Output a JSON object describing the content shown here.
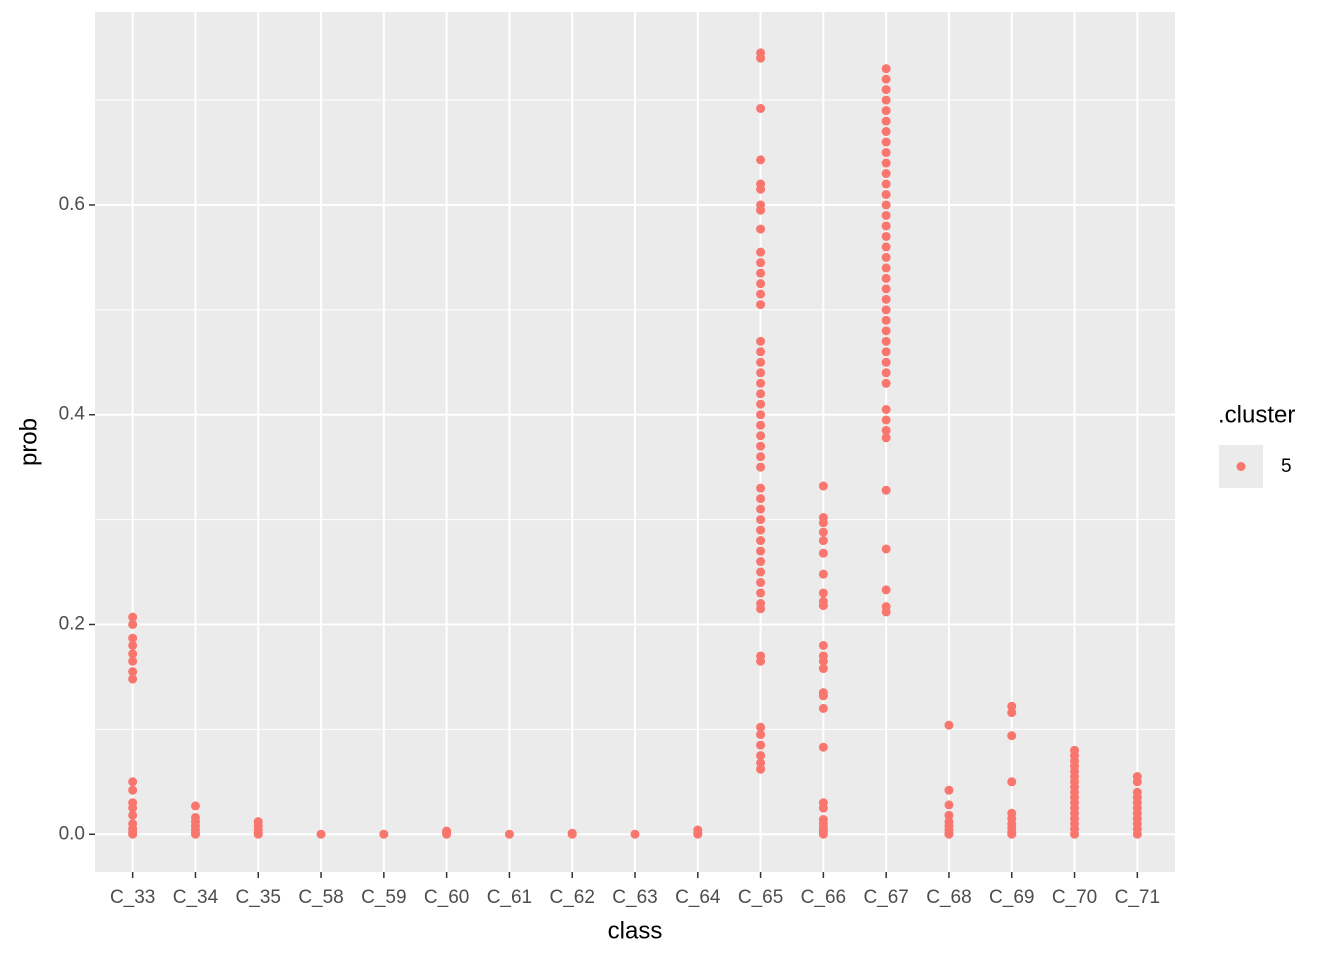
{
  "chart_data": {
    "type": "strip",
    "x_label": "class",
    "y_label": "prob",
    "legend_title": ".cluster",
    "legend": "right",
    "grid": true,
    "categories": [
      "C_33",
      "C_34",
      "C_35",
      "C_58",
      "C_59",
      "C_60",
      "C_61",
      "C_62",
      "C_63",
      "C_64",
      "C_65",
      "C_66",
      "C_67",
      "C_68",
      "C_69",
      "C_70",
      "C_71"
    ],
    "series": [
      {
        "name": "5",
        "color": "#f8766d",
        "values": [
          [
            0.207,
            0.2,
            0.187,
            0.18,
            0.172,
            0.165,
            0.155,
            0.148,
            0.05,
            0.042,
            0.03,
            0.025,
            0.018,
            0.01,
            0.005,
            0.002,
            0
          ],
          [
            0.027,
            0.016,
            0.012,
            0.008,
            0.004,
            0.001,
            0
          ],
          [
            0.012,
            0.008,
            0.004,
            0.001,
            0
          ],
          [
            0
          ],
          [
            0
          ],
          [
            0.003,
            0.001,
            0
          ],
          [
            0
          ],
          [
            0.001,
            0
          ],
          [
            0
          ],
          [
            0.004,
            0.001,
            0
          ],
          [
            0.745,
            0.74,
            0.692,
            0.643,
            0.62,
            0.615,
            0.6,
            0.595,
            0.577,
            0.555,
            0.545,
            0.535,
            0.525,
            0.515,
            0.505,
            0.47,
            0.46,
            0.45,
            0.44,
            0.43,
            0.42,
            0.41,
            0.4,
            0.39,
            0.38,
            0.37,
            0.36,
            0.35,
            0.33,
            0.32,
            0.31,
            0.3,
            0.29,
            0.28,
            0.27,
            0.26,
            0.25,
            0.24,
            0.23,
            0.22,
            0.215,
            0.17,
            0.165,
            0.102,
            0.095,
            0.085,
            0.075,
            0.068,
            0.062
          ],
          [
            0.332,
            0.302,
            0.297,
            0.288,
            0.28,
            0.268,
            0.248,
            0.23,
            0.222,
            0.218,
            0.18,
            0.17,
            0.165,
            0.158,
            0.135,
            0.132,
            0.12,
            0.083,
            0.03,
            0.025,
            0.014,
            0.01,
            0.006,
            0.003,
            0
          ],
          [
            0.73,
            0.72,
            0.71,
            0.7,
            0.69,
            0.68,
            0.67,
            0.66,
            0.65,
            0.64,
            0.63,
            0.62,
            0.61,
            0.6,
            0.59,
            0.58,
            0.57,
            0.56,
            0.55,
            0.54,
            0.53,
            0.52,
            0.51,
            0.5,
            0.49,
            0.48,
            0.47,
            0.46,
            0.45,
            0.44,
            0.43,
            0.405,
            0.395,
            0.385,
            0.378,
            0.328,
            0.272,
            0.233,
            0.217,
            0.212
          ],
          [
            0.104,
            0.042,
            0.028,
            0.018,
            0.012,
            0.008,
            0.004,
            0.001,
            0
          ],
          [
            0.122,
            0.116,
            0.094,
            0.05,
            0.02,
            0.015,
            0.01,
            0.006,
            0.002,
            0
          ],
          [
            0.08,
            0.075,
            0.07,
            0.065,
            0.06,
            0.055,
            0.05,
            0.045,
            0.04,
            0.035,
            0.03,
            0.025,
            0.02,
            0.015,
            0.01,
            0.005,
            0
          ],
          [
            0.055,
            0.05,
            0.04,
            0.035,
            0.03,
            0.025,
            0.02,
            0.015,
            0.01,
            0.005,
            0
          ]
        ]
      }
    ],
    "ylim": [
      -0.036,
      0.784
    ],
    "yticks": [
      {
        "value": 0,
        "label": "0.0"
      },
      {
        "value": 0.2,
        "label": "0.2"
      },
      {
        "value": 0.4,
        "label": "0.4"
      },
      {
        "value": 0.6,
        "label": "0.6"
      }
    ],
    "minor_yticks": [
      0.1,
      0.3,
      0.5,
      0.7
    ]
  }
}
